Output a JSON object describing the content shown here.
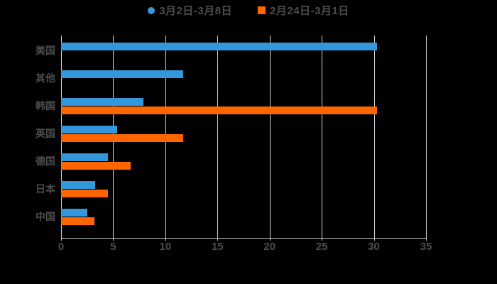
{
  "legend": {
    "items": [
      {
        "label": "3月2日-3月8日",
        "marker": "circle-marker-icon",
        "color": "#3398db"
      },
      {
        "label": "2月24日-3月1日",
        "marker": "square-marker-icon",
        "color": "#ff6600"
      }
    ]
  },
  "chart_data": {
    "type": "bar",
    "orientation": "horizontal",
    "title": "",
    "xlabel": "",
    "ylabel": "",
    "categories": [
      "美国",
      "其他",
      "韩国",
      "英国",
      "德国",
      "日本",
      "中国"
    ],
    "series": [
      {
        "name": "3月2日-3月8日",
        "color": "#3398db",
        "values": [
          30.3,
          11.7,
          7.9,
          5.4,
          4.5,
          3.3,
          2.5
        ]
      },
      {
        "name": "2月24日-3月1日",
        "color": "#ff6600",
        "values": [
          0,
          0,
          30.3,
          11.7,
          6.7,
          4.5,
          3.2
        ]
      }
    ],
    "x_ticks": [
      0,
      5,
      10,
      15,
      20,
      25,
      30,
      35
    ],
    "xlim": [
      0,
      35
    ],
    "grid": true,
    "legend_position": "top-center",
    "styles": {
      "background": "#000000",
      "grid_color": "#d2d2d2",
      "axis_color": "#c6c6c6",
      "text_color": "#4d4d4d"
    }
  }
}
